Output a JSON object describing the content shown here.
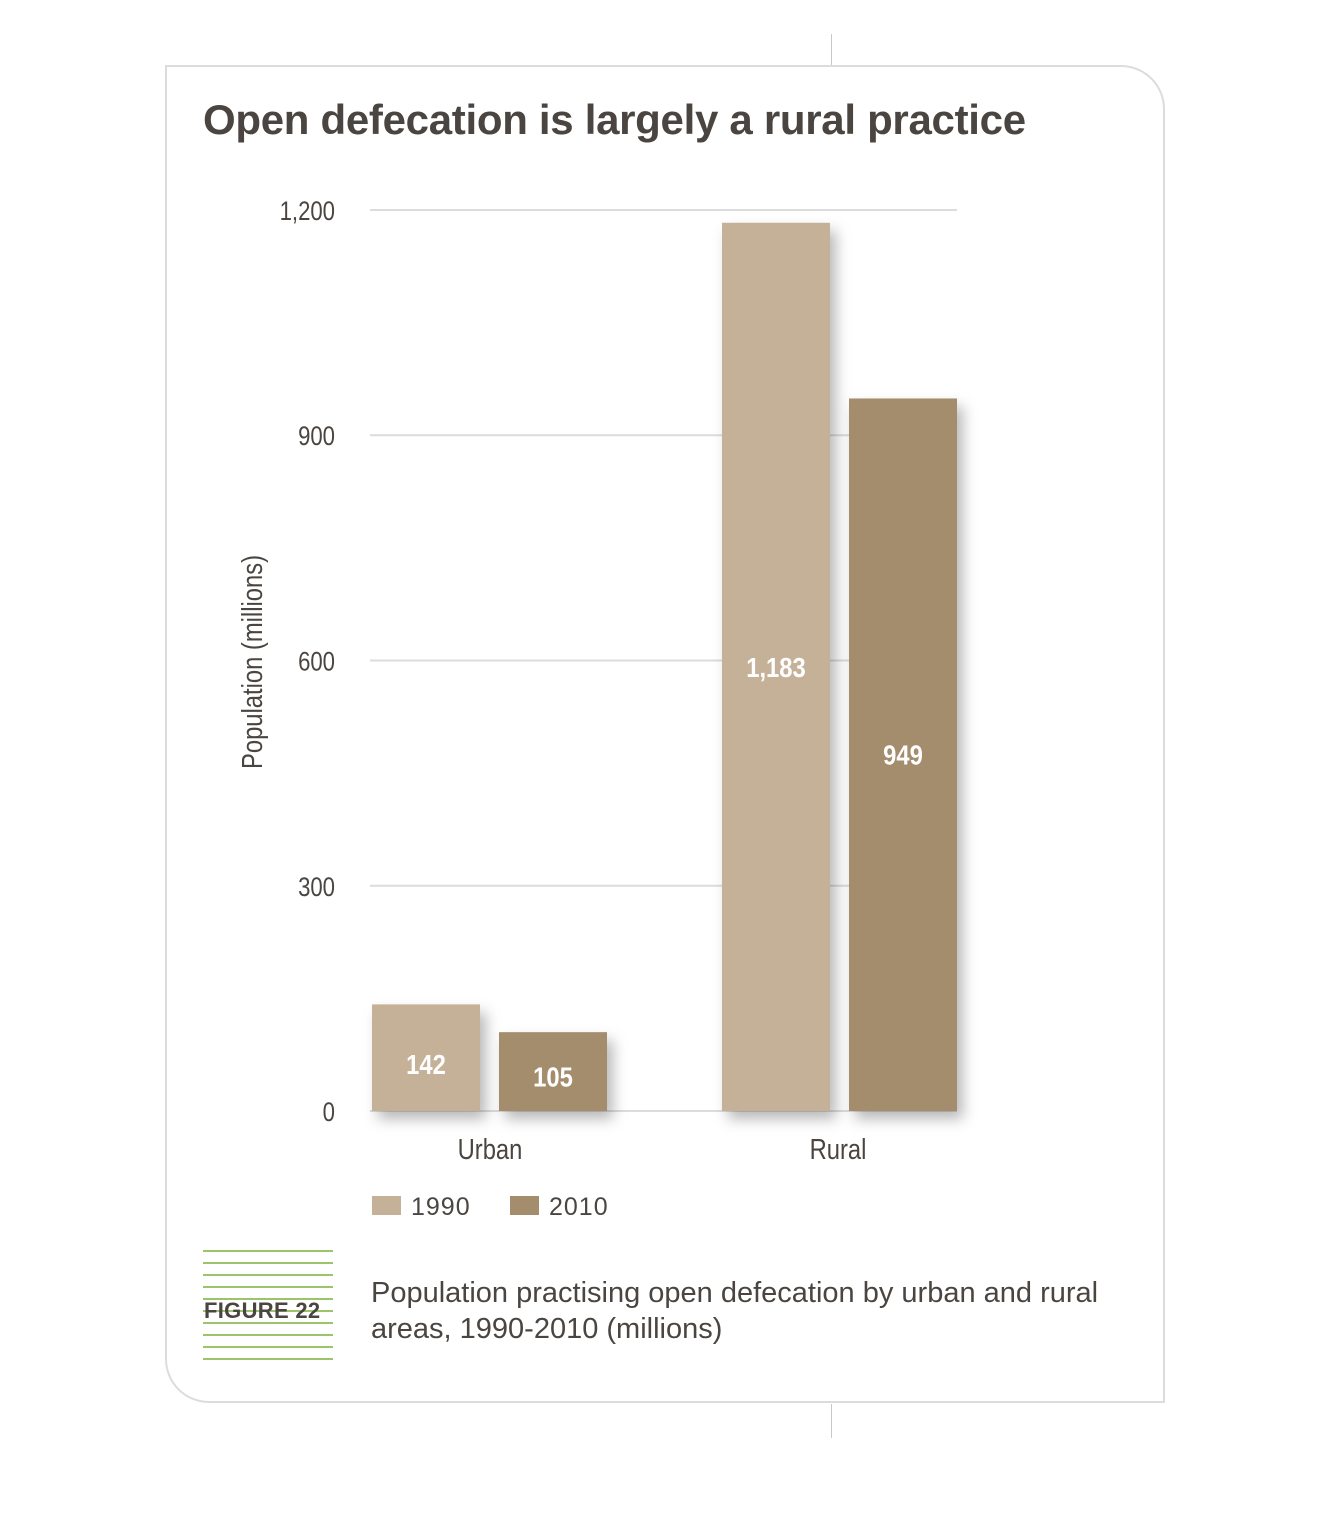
{
  "title": "Open defecation is largely a rural practice",
  "figure_label": "FIGURE 22",
  "caption": "Population practising open defecation by urban and rural areas, 1990-2010 (millions)",
  "colors": {
    "s1990": "#c4b197",
    "s2010": "#a38d6d",
    "grid": "#dcdcdc",
    "text": "#4a4540",
    "accent": "#9cc46a"
  },
  "chart_data": {
    "type": "bar",
    "categories": [
      "Urban",
      "Rural"
    ],
    "series": [
      {
        "name": "1990",
        "values": [
          142,
          1183
        ],
        "labels": [
          "142",
          "1,183"
        ]
      },
      {
        "name": "2010",
        "values": [
          105,
          949
        ],
        "labels": [
          "105",
          "949"
        ]
      }
    ],
    "ylabel": "Population (millions)",
    "ylim": [
      0,
      1200
    ],
    "yticks": [
      0,
      300,
      600,
      900,
      1200
    ],
    "ytick_labels": [
      "0",
      "300",
      "600",
      "900",
      "1,200"
    ],
    "grid": true,
    "legend": "bottom-left"
  }
}
